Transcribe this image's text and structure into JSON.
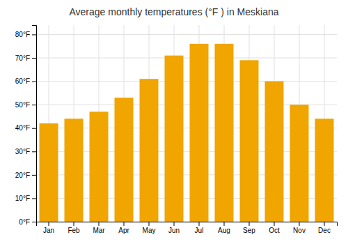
{
  "chart_data": {
    "type": "bar",
    "title": "Average monthly temperatures (°F ) in Meskiana",
    "categories": [
      "Jan",
      "Feb",
      "Mar",
      "Apr",
      "May",
      "Jun",
      "Jul",
      "Aug",
      "Sep",
      "Oct",
      "Nov",
      "Dec"
    ],
    "values": [
      42,
      44,
      47,
      53,
      61,
      71,
      76,
      76,
      69,
      60,
      50,
      44
    ],
    "color": "#F0A500",
    "ylim": [
      0,
      84
    ],
    "yticks": [
      {
        "value": 0,
        "label": "0°F"
      },
      {
        "value": 10,
        "label": "10°F"
      },
      {
        "value": 20,
        "label": "20°F"
      },
      {
        "value": 30,
        "label": "30°F"
      },
      {
        "value": 40,
        "label": "40°F"
      },
      {
        "value": 50,
        "label": "50°F"
      },
      {
        "value": 60,
        "label": "60°F"
      },
      {
        "value": 70,
        "label": "70°F"
      },
      {
        "value": 80,
        "label": "80°F"
      }
    ],
    "grid": true
  }
}
